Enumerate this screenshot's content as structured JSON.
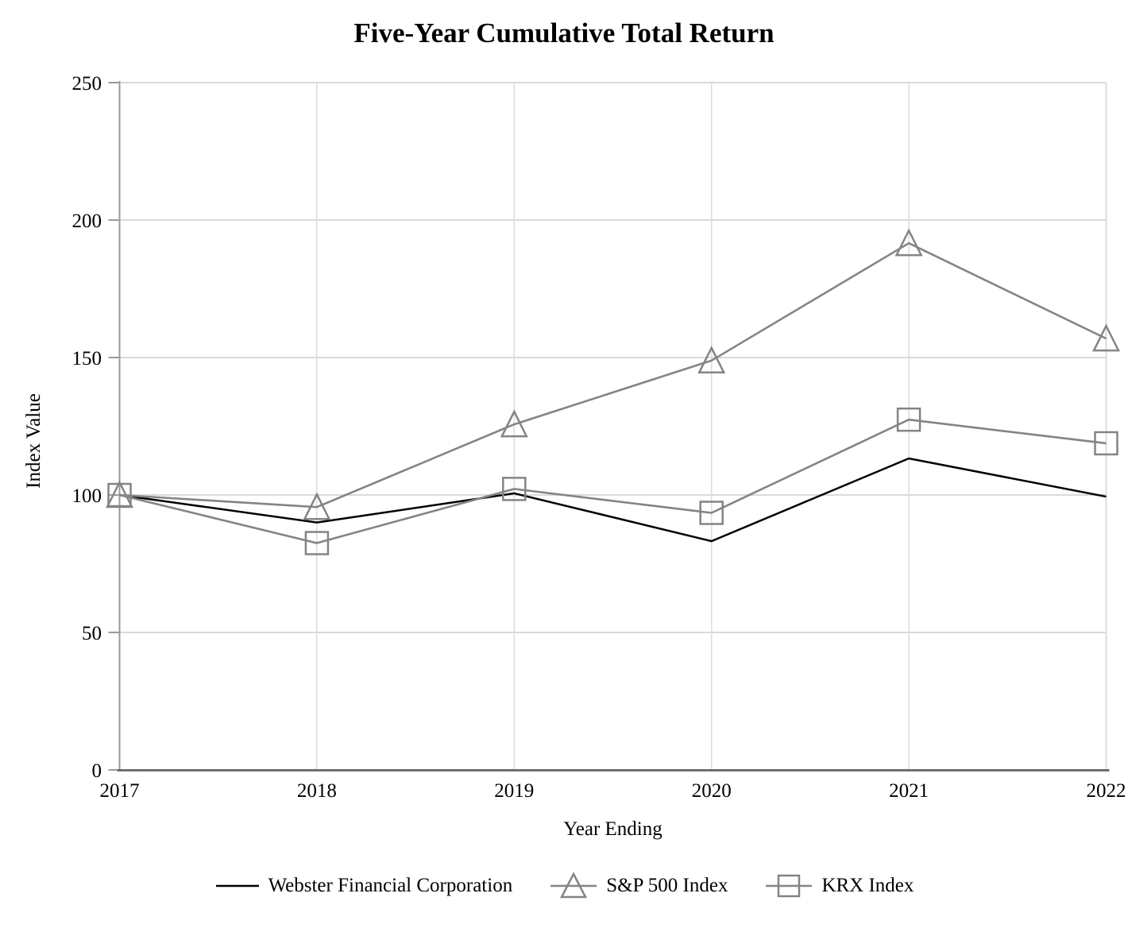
{
  "chart_data": {
    "type": "line",
    "title": "Five-Year Cumulative Total Return",
    "xlabel": "Year Ending",
    "ylabel": "Index Value",
    "categories": [
      "2017",
      "2018",
      "2019",
      "2020",
      "2021",
      "2022"
    ],
    "ylim": [
      0,
      250
    ],
    "yticks": [
      0,
      50,
      100,
      150,
      200,
      250
    ],
    "grid": true,
    "legend_position": "bottom",
    "series": [
      {
        "name": "Webster Financial Corporation",
        "color": "#000000",
        "marker": "none",
        "values": [
          100,
          90.0,
          100.6,
          83.2,
          113.3,
          99.4
        ]
      },
      {
        "name": "S&P 500 Index",
        "color": "#848484",
        "marker": "triangle",
        "values": [
          100,
          95.6,
          125.7,
          148.9,
          191.6,
          156.9
        ]
      },
      {
        "name": "KRX Index",
        "color": "#848484",
        "marker": "square",
        "values": [
          100,
          82.5,
          102.2,
          93.5,
          127.4,
          118.8
        ]
      }
    ],
    "colors": {
      "h_gridline": "#d9d9d9",
      "v_gridline": "#dcdcdc",
      "y_axis": "#9a9a9a",
      "x_axis": "#6e6e6e",
      "tick": "#9a9a9a",
      "marker_stroke": "#848484",
      "text": "#000000"
    }
  }
}
